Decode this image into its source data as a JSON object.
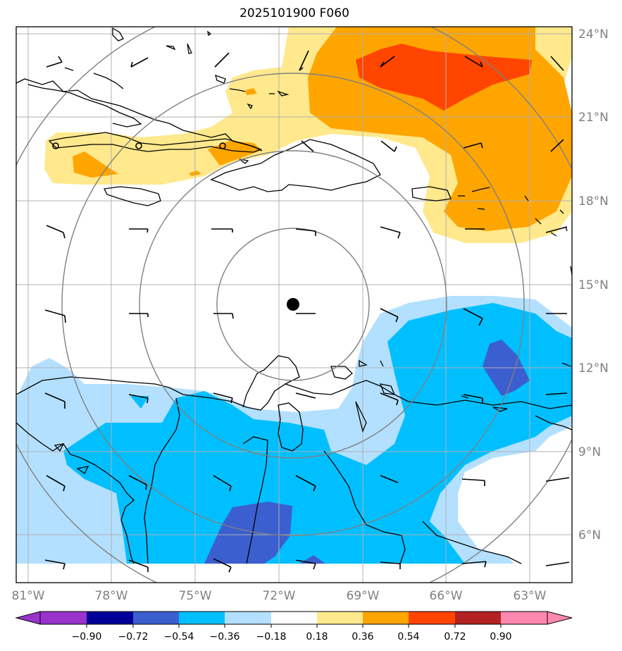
{
  "title": "2025101900 F060",
  "lon_labels": [
    "81°W",
    "78°W",
    "75°W",
    "72°W",
    "69°W",
    "66°W",
    "63°W"
  ],
  "lat_labels": [
    "24°N",
    "21°N",
    "18°N",
    "15°N",
    "12°N",
    "9°N",
    "6°N"
  ],
  "colorbar": {
    "tick_labels": [
      "−0.90",
      "−0.72",
      "−0.54",
      "−0.36",
      "−0.18",
      "0.18",
      "0.36",
      "0.54",
      "0.72",
      "0.90"
    ],
    "colors": [
      "#9933cc",
      "#000099",
      "#3b5fcf",
      "#00bfff",
      "#b3e0ff",
      "#ffffff",
      "#ffe98c",
      "#ffa500",
      "#ff4500",
      "#b22222",
      "#ff88b0"
    ]
  },
  "colors": {
    "coast": "#000000",
    "grid": "#b0b0b0",
    "range_rings": "#808080",
    "center_marker": "#000000"
  },
  "center_marker": {
    "lon": -71.5,
    "lat": 14.3
  }
}
